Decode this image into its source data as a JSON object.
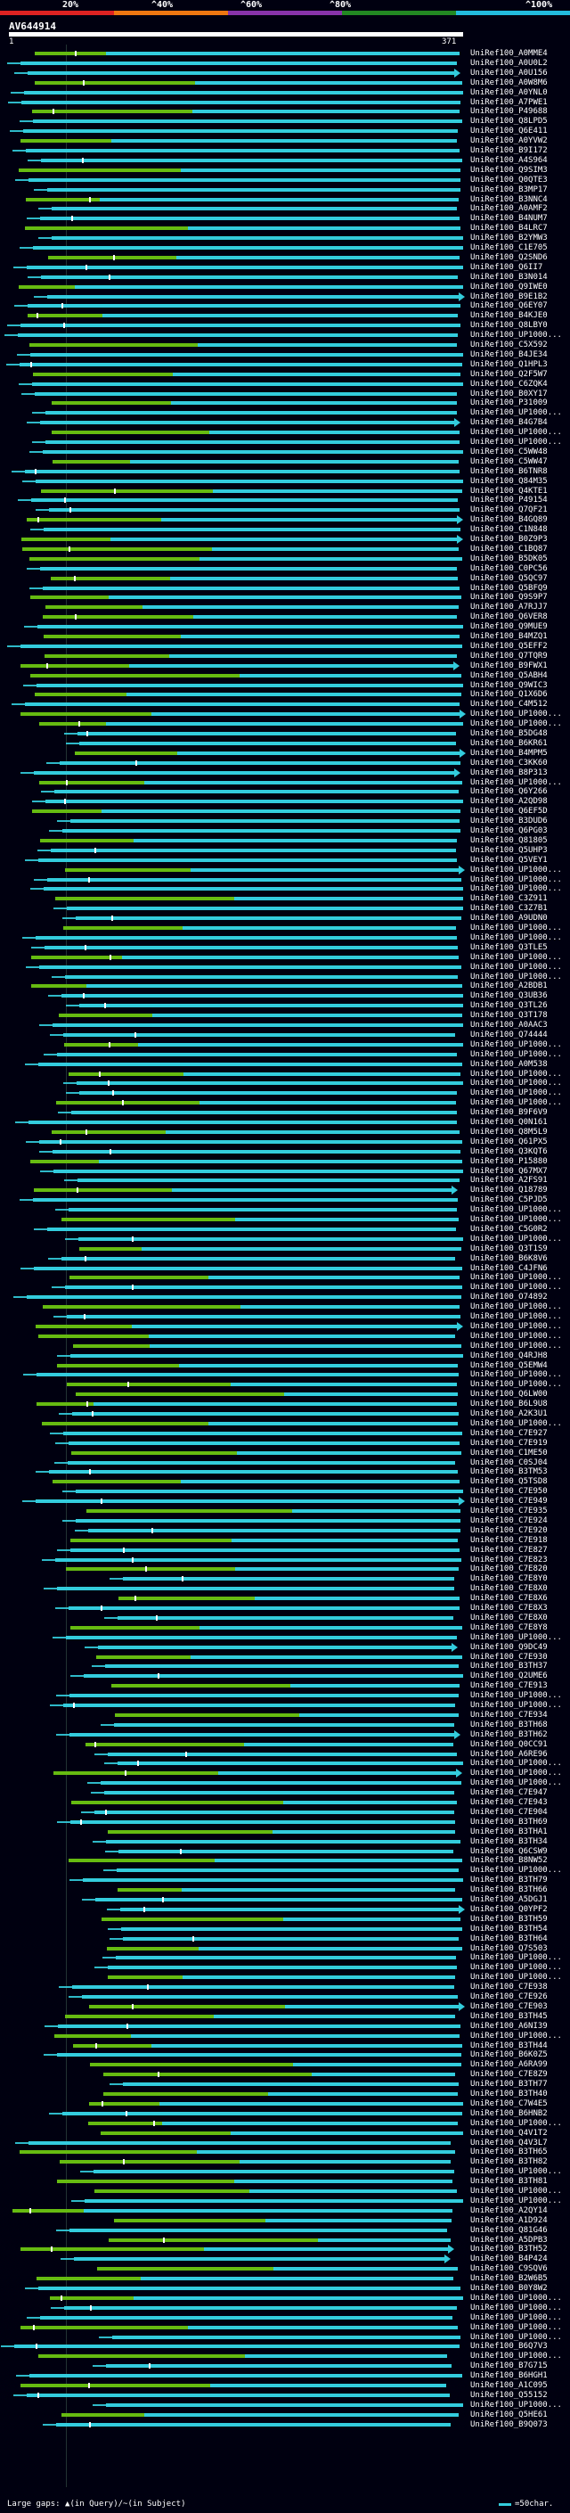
{
  "query": {
    "title": "AV644914",
    "start": "1",
    "end": "371",
    "coverage_thresholds": [
      "20%",
      "^40%",
      "^60%",
      "^80%",
      "^100%"
    ],
    "colors": [
      "#dd2222",
      "#ee7711",
      "#8833aa",
      "#228822",
      "#22bbdd"
    ]
  },
  "hits": [
    "UniRef100_A0MME4",
    "UniRef100_A0U0L2",
    "UniRef100_A0U156",
    "UniRef100_A0W8M6",
    "UniRef100_A0YNL0",
    "UniRef100_A7PWE1",
    "UniRef100_P49688",
    "UniRef100_Q8LPD5",
    "UniRef100_Q6E411",
    "UniRef100_A0YVW2",
    "UniRef100_B9I172",
    "UniRef100_A4S964",
    "UniRef100_Q9SIM3",
    "UniRef100_Q0QTE3",
    "UniRef100_B3MP17",
    "UniRef100_B3NNC4",
    "UniRef100_A0AMF2",
    "UniRef100_B4NUM7",
    "UniRef100_B4LRC7",
    "UniRef100_B2YMW3",
    "UniRef100_C1E705",
    "UniRef100_Q2SND6",
    "UniRef100_Q6II7",
    "UniRef100_B3N014",
    "UniRef100_Q9IWE0",
    "UniRef100_B9E1B2",
    "UniRef100_Q6EY07",
    "UniRef100_B4KJE0",
    "UniRef100_Q8LBY0",
    "UniRef100_UP1000...",
    "UniRef100_C5X592",
    "UniRef100_B4JE34",
    "UniRef100_Q1HPL3",
    "UniRef100_Q2F5W7",
    "UniRef100_C6ZQK4",
    "UniRef100_B0XY17",
    "UniRef100_P31009",
    "UniRef100_UP1000...",
    "UniRef100_B4G7B4",
    "UniRef100_UP1000...",
    "UniRef100_UP1000...",
    "UniRef100_C5WW48",
    "UniRef100_C5WW47",
    "UniRef100_B6TNR8",
    "UniRef100_Q84M35",
    "UniRef100_Q4KTE1",
    "UniRef100_P49154",
    "UniRef100_Q7QF21",
    "UniRef100_B4GQ89",
    "UniRef100_C1N848",
    "UniRef100_B0Z9P3",
    "UniRef100_C1BQ87",
    "UniRef100_B5DK05",
    "UniRef100_C0PC56",
    "UniRef100_Q5QC97",
    "UniRef100_Q5BFQ9",
    "UniRef100_Q9S9P7",
    "UniRef100_A7RJJ7",
    "UniRef100_Q6VER8",
    "UniRef100_Q9MUE9",
    "UniRef100_B4MZQ1",
    "UniRef100_Q5EFF2",
    "UniRef100_Q7TQR9",
    "UniRef100_B9FWX1",
    "UniRef100_Q5ABH4",
    "UniRef100_Q9WIC3",
    "UniRef100_Q1X6D6",
    "UniRef100_C4M512",
    "UniRef100_UP1000...",
    "UniRef100_UP1000...",
    "UniRef100_B5DG48",
    "UniRef100_B6KR61",
    "UniRef100_B4MPM5",
    "UniRef100_C3KK60",
    "UniRef100_B8P313",
    "UniRef100_UP1000...",
    "UniRef100_Q6Y266",
    "UniRef100_A2QD98",
    "UniRef100_Q6EF5D",
    "UniRef100_B3DUD6",
    "UniRef100_Q6PG03",
    "UniRef100_Q81805",
    "UniRef100_Q5UHP3",
    "UniRef100_Q5VEY1",
    "UniRef100_UP1000...",
    "UniRef100_UP1000...",
    "UniRef100_UP1000...",
    "UniRef100_C3Z911",
    "UniRef100_C3Z7B1",
    "UniRef100_A9UDN0",
    "UniRef100_UP1000...",
    "UniRef100_UP1000...",
    "UniRef100_Q3TLE5",
    "UniRef100_UP1000...",
    "UniRef100_UP1000...",
    "UniRef100_UP1000...",
    "UniRef100_A2BDB1",
    "UniRef100_Q3UB36",
    "UniRef100_Q3TL26",
    "UniRef100_Q3T178",
    "UniRef100_A0AAC3",
    "UniRef100_Q74444",
    "UniRef100_UP1000...",
    "UniRef100_UP1000...",
    "UniRef100_A0M538",
    "UniRef100_UP1000...",
    "UniRef100_UP1000...",
    "UniRef100_UP1000...",
    "UniRef100_UP1000...",
    "UniRef100_B9F6V9",
    "UniRef100_Q0N161",
    "UniRef100_Q8M5L9",
    "UniRef100_Q61PX5",
    "UniRef100_Q3KQT6",
    "UniRef100_P15880",
    "UniRef100_Q67MX7",
    "UniRef100_A2FS91",
    "UniRef100_Q18789",
    "UniRef100_C5PJD5",
    "UniRef100_UP1000...",
    "UniRef100_UP1000...",
    "UniRef100_C5G0R2",
    "UniRef100_UP1000...",
    "UniRef100_Q3T1S9",
    "UniRef100_B6K8V6",
    "UniRef100_C4JFN6",
    "UniRef100_UP1000...",
    "UniRef100_UP1000...",
    "UniRef100_O74892",
    "UniRef100_UP1000...",
    "UniRef100_UP1000...",
    "UniRef100_UP1000...",
    "UniRef100_UP1000...",
    "UniRef100_UP1000...",
    "UniRef100_Q4RJH8",
    "UniRef100_Q5EMW4",
    "UniRef100_UP1000...",
    "UniRef100_UP1000...",
    "UniRef100_Q6LW00",
    "UniRef100_B6L9U8",
    "UniRef100_A2K3U1",
    "UniRef100_UP1000...",
    "UniRef100_C7E927",
    "UniRef100_C7E919",
    "UniRef100_C1ME50",
    "UniRef100_C0SJ04",
    "UniRef100_B3TM53",
    "UniRef100_Q5TSD8",
    "UniRef100_C7E950",
    "UniRef100_C7E949",
    "UniRef100_C7E935",
    "UniRef100_C7E924",
    "UniRef100_C7E920",
    "UniRef100_C7E918",
    "UniRef100_C7E827",
    "UniRef100_C7E823",
    "UniRef100_C7E820",
    "UniRef100_C7E8Y0",
    "UniRef100_C7E8X0",
    "UniRef100_C7E8X6",
    "UniRef100_C7E8X3",
    "UniRef100_C7E8X0",
    "UniRef100_C7E8Y8",
    "UniRef100_UP1000...",
    "UniRef100_Q9DC49",
    "UniRef100_C7E930",
    "UniRef100_B3TH37",
    "UniRef100_Q2UME6",
    "UniRef100_C7E913",
    "UniRef100_UP1000...",
    "UniRef100_UP1000...",
    "UniRef100_C7E934",
    "UniRef100_B3TH68",
    "UniRef100_B3TH62",
    "UniRef100_Q0CC91",
    "UniRef100_A6RE96",
    "UniRef100_UP1000...",
    "UniRef100_UP1000...",
    "UniRef100_UP1000...",
    "UniRef100_C7E947",
    "UniRef100_C7E943",
    "UniRef100_C7E904",
    "UniRef100_B3TH69",
    "UniRef100_B3THA1",
    "UniRef100_B3TH34",
    "UniRef100_Q6CSW9",
    "UniRef100_B8NW52",
    "UniRef100_UP1000...",
    "UniRef100_B3TH79",
    "UniRef100_B3TH66",
    "UniRef100_A5DGJ1",
    "UniRef100_Q0YPF2",
    "UniRef100_B3TH59",
    "UniRef100_B3TH54",
    "UniRef100_B3TH64",
    "UniRef100_Q7S503",
    "UniRef100_UP1000...",
    "UniRef100_UP1000...",
    "UniRef100_UP1000...",
    "UniRef100_C7E938",
    "UniRef100_C7E926",
    "UniRef100_C7E903",
    "UniRef100_B3TH45",
    "UniRef100_A6NI39",
    "UniRef100_UP1000...",
    "UniRef100_B3TH44",
    "UniRef100_B6K0Z5",
    "UniRef100_A6RA99",
    "UniRef100_C7E8Z9",
    "UniRef100_B3TH77",
    "UniRef100_B3TH40",
    "UniRef100_C7W4E5",
    "UniRef100_B6HNB2",
    "UniRef100_UP1000...",
    "UniRef100_Q4V1T2",
    "UniRef100_Q4V3L7",
    "UniRef100_B3TH65",
    "UniRef100_B3TH82",
    "UniRef100_UP1000...",
    "UniRef100_B3TH81",
    "UniRef100_UP1000...",
    "UniRef100_UP1000...",
    "UniRef100_A2QY14",
    "UniRef100_A1D924",
    "UniRef100_Q81G46",
    "UniRef100_A5DPB3",
    "UniRef100_B3TH52",
    "UniRef100_B4P424",
    "UniRef100_C9SQV6",
    "UniRef100_B2W6B5",
    "UniRef100_B0Y8W2",
    "UniRef100_UP1000...",
    "UniRef100_UP1000...",
    "UniRef100_UP1000...",
    "UniRef100_UP1000...",
    "UniRef100_UP1000...",
    "UniRef100_B6Q7V3",
    "UniRef100_UP1000...",
    "UniRef100_B7G715",
    "UniRef100_B6HGH1",
    "UniRef100_A1C095",
    "UniRef100_Q55152",
    "UniRef100_UP1000...",
    "UniRef100_Q5HE61",
    "UniRef100_B9Q073"
  ],
  "footer": {
    "legend": "Large gaps: ▲(in Query)/~(in Subject)",
    "unit": "=50char."
  }
}
